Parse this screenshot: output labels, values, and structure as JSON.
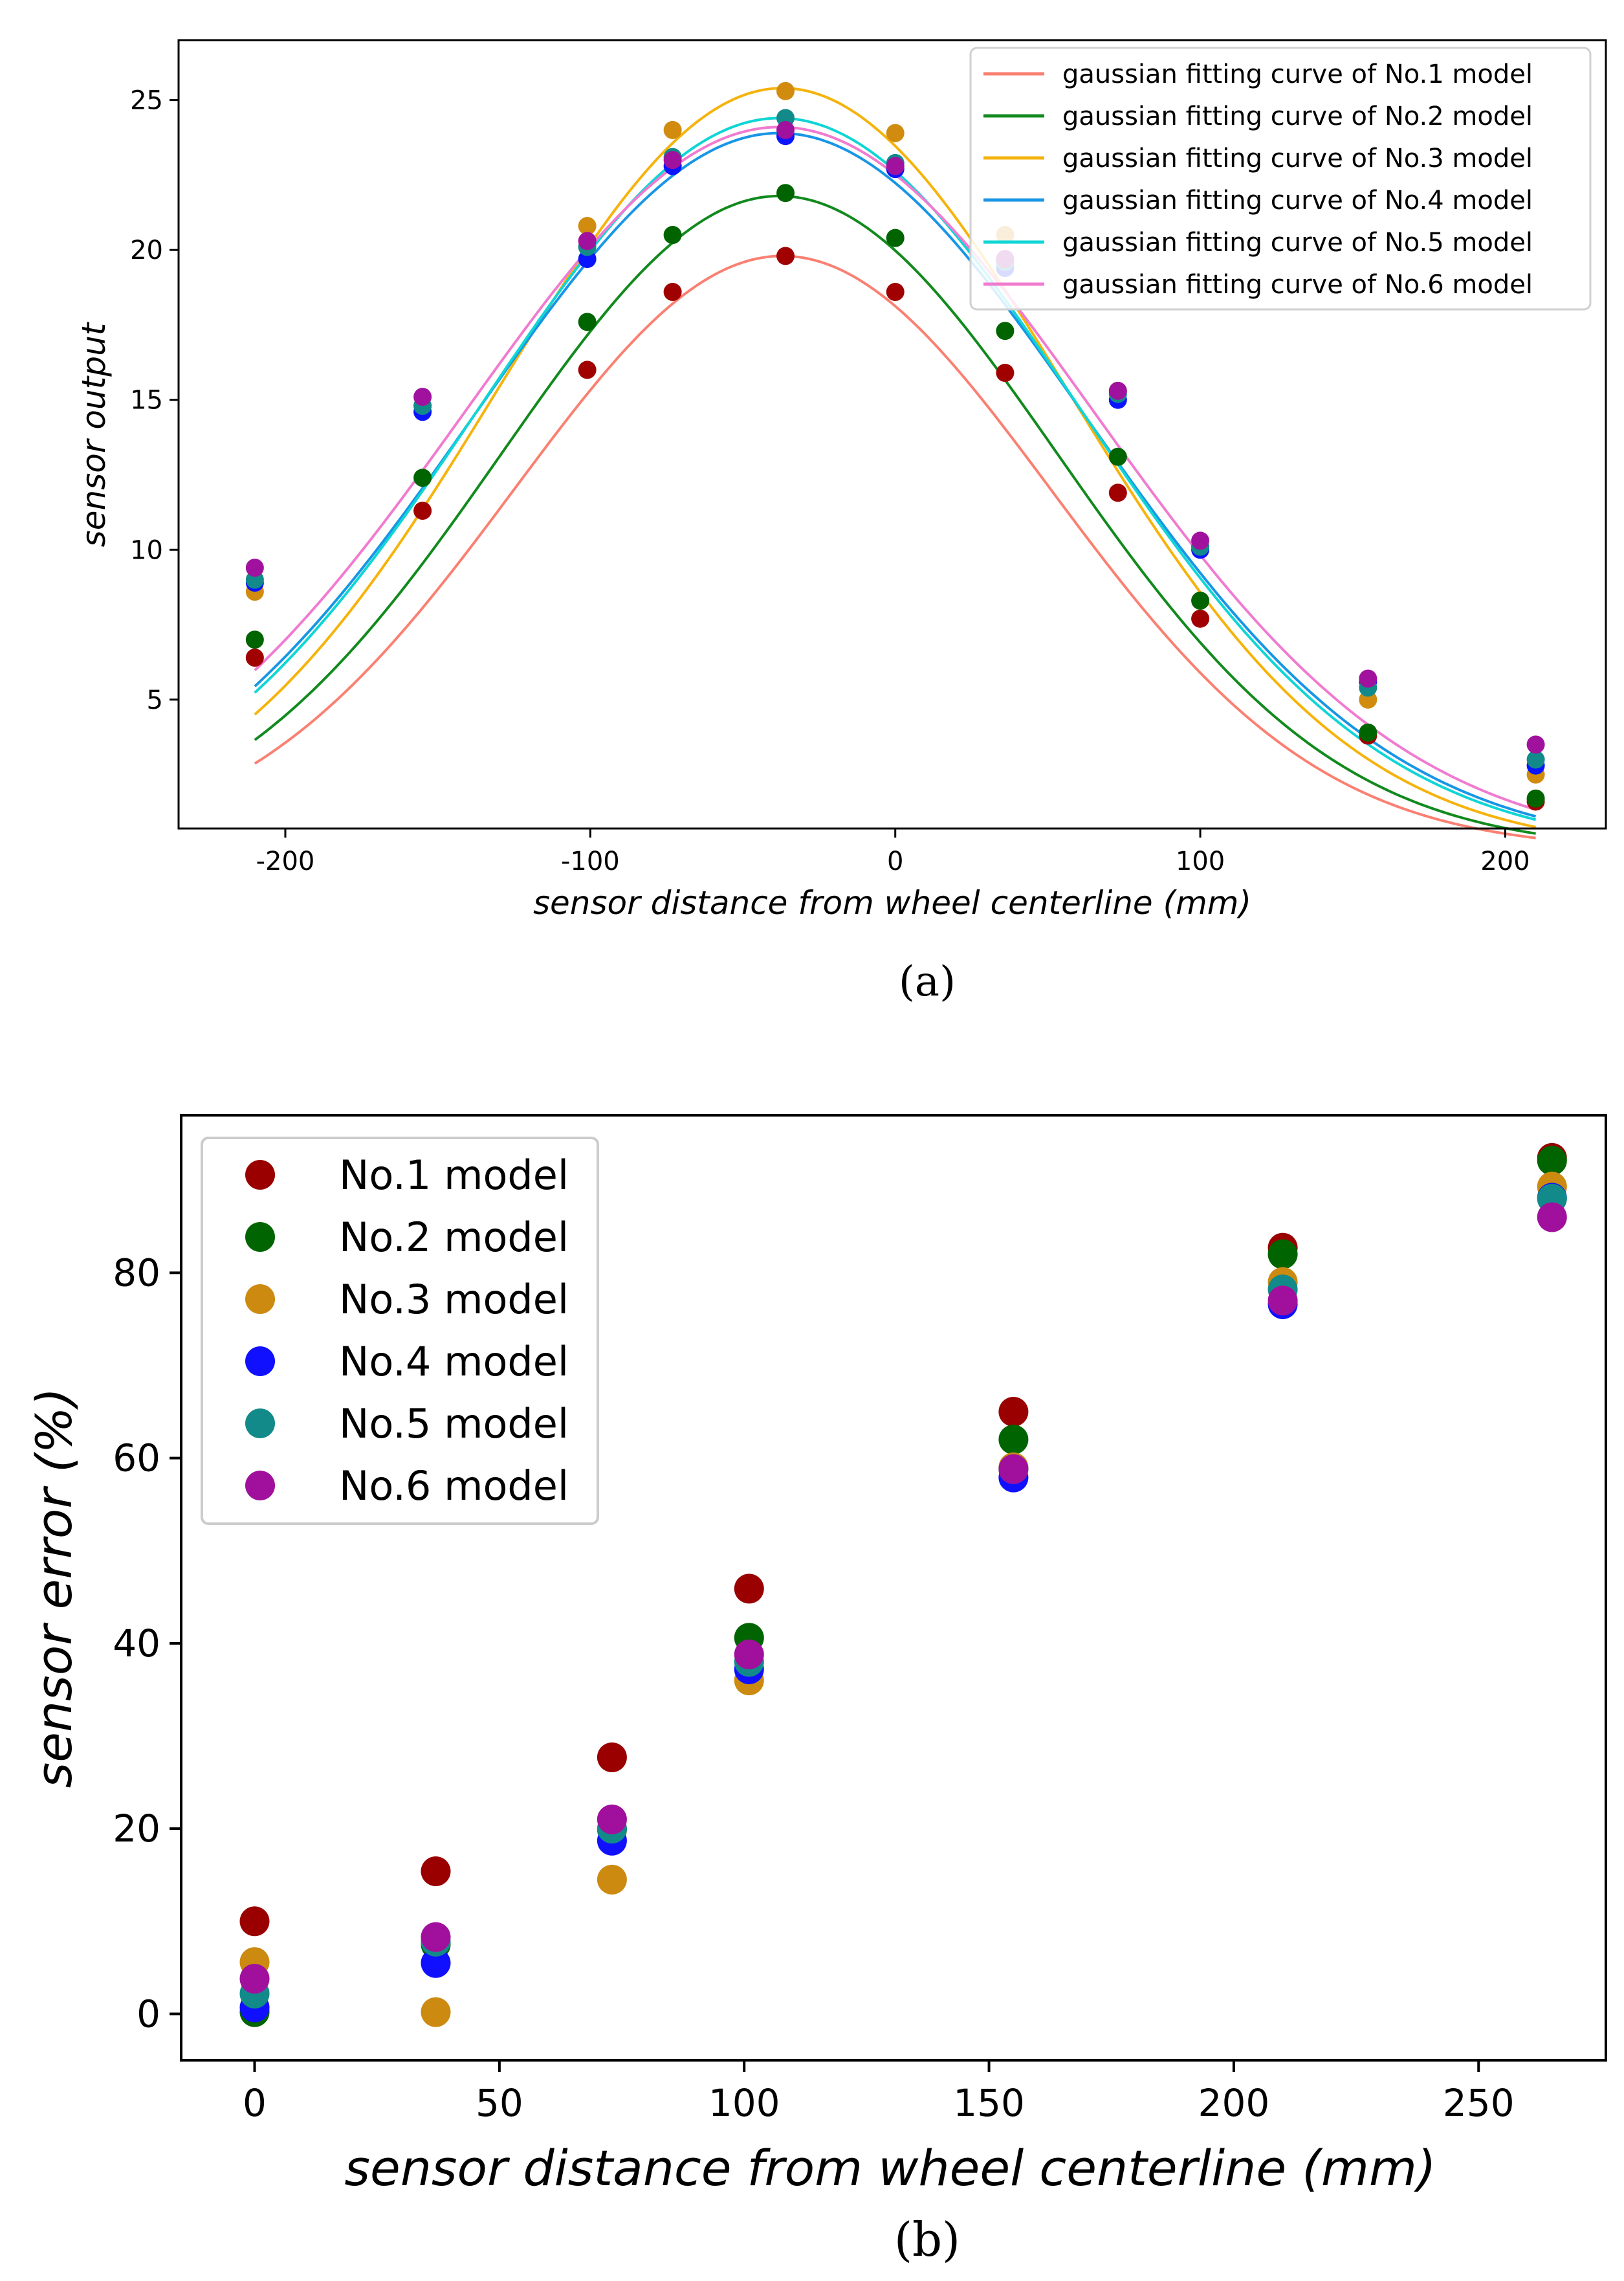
{
  "chart_data": [
    {
      "type": "line",
      "panel_label": "(a)",
      "xlabel": "sensor distance from wheel centerline (mm)",
      "ylabel": "sensor output",
      "xlim": [
        -235,
        233
      ],
      "ylim": [
        0.7,
        27
      ],
      "xticks": [
        -200,
        -100,
        0,
        100,
        200
      ],
      "yticks": [
        5,
        10,
        15,
        20,
        25
      ],
      "grid": false,
      "legend_position": "top-right",
      "x": [
        -210,
        -155,
        -101,
        -73,
        -36,
        0,
        36,
        73,
        100,
        155,
        210
      ],
      "series": [
        {
          "name": "gaussian fitting curve of No.1 model",
          "line_color": "#fa8072",
          "point_color": "#a00000",
          "amp": 19.8,
          "center": -37,
          "sigma": 88,
          "values": [
            6.4,
            11.3,
            16.0,
            18.6,
            19.8,
            18.6,
            15.9,
            11.9,
            7.7,
            3.8,
            1.6
          ]
        },
        {
          "name": "gaussian fitting curve of No.2 model",
          "line_color": "#128a1e",
          "point_color": "#006400",
          "amp": 21.8,
          "center": -38,
          "sigma": 91,
          "values": [
            7.0,
            12.4,
            17.6,
            20.5,
            21.9,
            20.4,
            17.3,
            13.1,
            8.3,
            3.9,
            1.7
          ]
        },
        {
          "name": "gaussian fitting curve of No.3 model",
          "line_color": "#f5b30c",
          "point_color": "#d18c0f",
          "amp": 25.4,
          "center": -37,
          "sigma": 93,
          "values": [
            8.6,
            14.8,
            20.8,
            24.0,
            25.3,
            23.9,
            20.5,
            15.3,
            10.1,
            5.0,
            2.5
          ]
        },
        {
          "name": "gaussian fitting curve of No.4 model",
          "line_color": "#1896e6",
          "point_color": "#0a14ff",
          "amp": 23.9,
          "center": -38,
          "sigma": 100,
          "values": [
            8.9,
            14.6,
            19.7,
            22.8,
            23.8,
            22.7,
            19.4,
            15.0,
            10.0,
            5.6,
            2.8
          ]
        },
        {
          "name": "gaussian fitting curve of No.5 model",
          "line_color": "#10d5d5",
          "point_color": "#128a8a",
          "amp": 24.4,
          "center": -38,
          "sigma": 98,
          "values": [
            9.0,
            14.8,
            20.1,
            23.1,
            24.4,
            22.9,
            19.6,
            15.2,
            10.1,
            5.4,
            3.0
          ]
        },
        {
          "name": "gaussian fitting curve of No.6 model",
          "line_color": "#f07bd0",
          "point_color": "#a0129d",
          "amp": 24.1,
          "center": -38,
          "sigma": 103,
          "values": [
            9.4,
            15.1,
            20.3,
            23.0,
            24.0,
            22.8,
            19.7,
            15.3,
            10.3,
            5.7,
            3.5
          ]
        }
      ]
    },
    {
      "type": "scatter",
      "panel_label": "(b)",
      "xlabel": "sensor distance from wheel centerline (mm)",
      "ylabel": "sensor error (%)",
      "xlim": [
        -15,
        276
      ],
      "ylim": [
        -5,
        97
      ],
      "xticks": [
        0,
        50,
        100,
        150,
        200,
        250
      ],
      "yticks": [
        0,
        20,
        40,
        60,
        80
      ],
      "grid": false,
      "legend_position": "top-left",
      "x": [
        0,
        37,
        73,
        101,
        155,
        210,
        265
      ],
      "series": [
        {
          "name": "No.1 model",
          "color": "#9a0000",
          "values": [
            10.0,
            15.4,
            27.7,
            45.9,
            65.0,
            82.7,
            92.4
          ]
        },
        {
          "name": "No.2 model",
          "color": "#006400",
          "values": [
            0.2,
            7.5,
            19.9,
            40.6,
            62.0,
            82.0,
            92.1
          ]
        },
        {
          "name": "No.3 model",
          "color": "#cc8a10",
          "values": [
            5.6,
            0.2,
            14.5,
            36.0,
            59.0,
            79.0,
            89.3
          ]
        },
        {
          "name": "No.4 model",
          "color": "#1010ff",
          "values": [
            0.7,
            5.5,
            18.7,
            37.2,
            57.9,
            76.6,
            88.1
          ]
        },
        {
          "name": "No.5 model",
          "color": "#138a8a",
          "values": [
            2.2,
            7.8,
            20.0,
            38.0,
            58.8,
            78.2,
            88.0
          ]
        },
        {
          "name": "No.6 model",
          "color": "#a0109c",
          "values": [
            3.8,
            8.3,
            21.0,
            38.8,
            58.8,
            77.0,
            86.0
          ]
        }
      ]
    }
  ]
}
